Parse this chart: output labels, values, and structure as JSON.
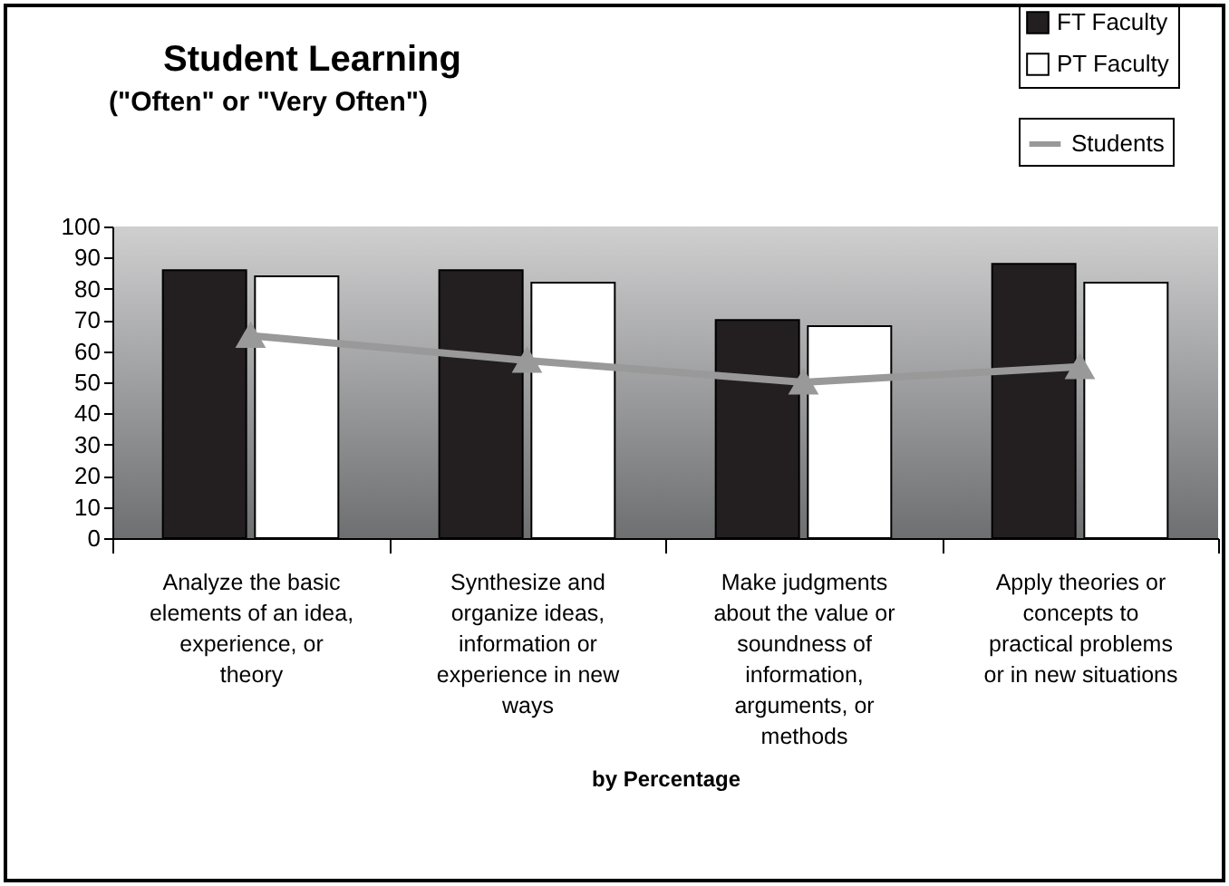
{
  "chart_data": {
    "type": "bar",
    "title": "Student Learning",
    "subtitle": "(\"Often\" or \"Very Often\")",
    "xlabel": "by Percentage",
    "categories": [
      "Analyze the basic\nelements of an idea,\nexperience, or\ntheory",
      "Synthesize and\norganize ideas,\ninformation or\nexperience in new\nways",
      "Make judgments\nabout the value or\nsoundness of\ninformation,\narguments, or\nmethods",
      "Apply theories or\nconcepts to\npractical problems\nor in new situations"
    ],
    "series": [
      {
        "name": "FT Faculty",
        "color": "#231f20",
        "values": [
          86,
          86,
          70,
          88
        ]
      },
      {
        "name": "PT Faculty",
        "color": "#ffffff",
        "values": [
          84,
          82,
          68,
          82
        ]
      },
      {
        "name": "Students",
        "type": "line",
        "color": "#999999",
        "marker": "triangle",
        "values": [
          65,
          57,
          50,
          55
        ]
      }
    ],
    "ylim": [
      0,
      100
    ],
    "yticks": [
      0,
      10,
      20,
      30,
      40,
      50,
      60,
      70,
      80,
      90,
      100
    ],
    "legend": "top right",
    "grid": false
  }
}
